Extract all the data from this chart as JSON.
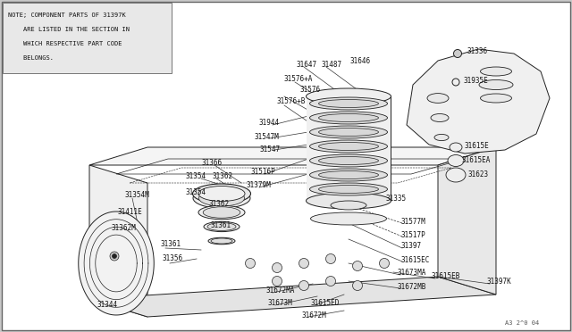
{
  "bg_color": "#c8c8c8",
  "diagram_bg": "#ffffff",
  "line_color": "#222222",
  "text_color": "#111111",
  "note_text": [
    "NOTE; COMPONENT PARTS OF 31397K",
    "    ARE LISTED IN THE SECTION IN",
    "    WHICH RESPECTIVE PART CODE",
    "    BELONGS."
  ],
  "figsize": [
    6.4,
    3.72
  ],
  "dpi": 100
}
